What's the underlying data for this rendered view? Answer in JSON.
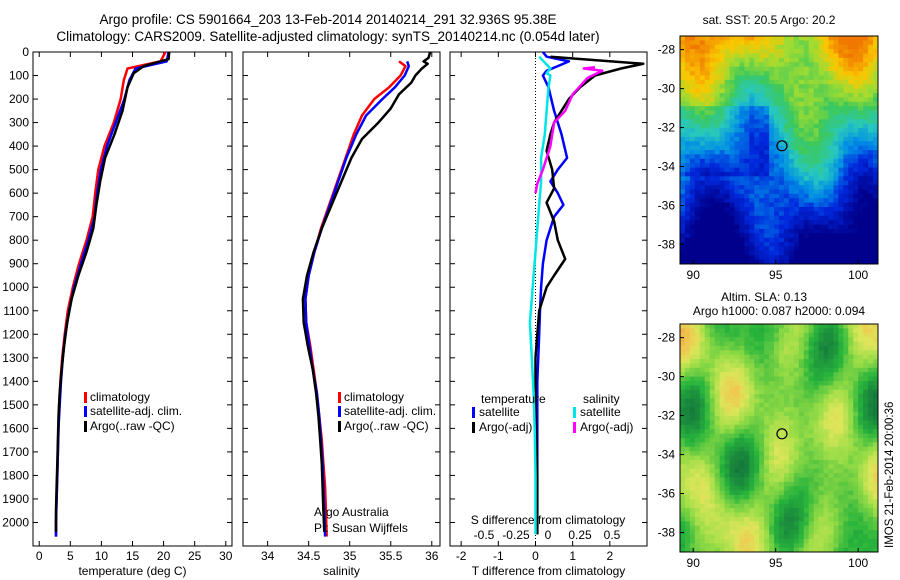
{
  "header": {
    "line1": "Argo profile: CS 5901664_203 13-Feb-2014 20140214_291 32.936S 95.38E",
    "line2": "Climatology: CARS2009. Satellite-adjusted climatology: synTS_20140214.nc (0.054d later)"
  },
  "colors": {
    "climatology": "#ff0000",
    "satellite": "#0000ff",
    "argo": "#000000",
    "sal_satellite": "#00e5e5",
    "sal_argo": "#ff00ff"
  },
  "chart_data": [
    {
      "id": "temperature",
      "type": "line",
      "xlabel": "temperature (deg C)",
      "ylabel": "",
      "xlim": [
        -1,
        31
      ],
      "ylim": [
        2100,
        0
      ],
      "xticks": [
        0,
        5,
        10,
        15,
        20,
        25,
        30
      ],
      "yticks": [
        0,
        100,
        200,
        300,
        400,
        500,
        600,
        700,
        800,
        900,
        1000,
        1100,
        1200,
        1300,
        1400,
        1500,
        1600,
        1700,
        1800,
        1900,
        2000
      ],
      "legend": [
        "climatology",
        "satellite-adj. clim.",
        "Argo(..raw -QC)"
      ],
      "series": [
        {
          "name": "climatology",
          "color": "#ff0000",
          "points": [
            [
              20.3,
              0
            ],
            [
              19.5,
              40
            ],
            [
              14.2,
              70
            ],
            [
              13.6,
              120
            ],
            [
              13.1,
              200
            ],
            [
              12.0,
              300
            ],
            [
              10.5,
              400
            ],
            [
              9.5,
              500
            ],
            [
              9.0,
              600
            ],
            [
              8.6,
              700
            ],
            [
              7.6,
              800
            ],
            [
              6.4,
              900
            ],
            [
              5.4,
              1000
            ],
            [
              4.6,
              1100
            ],
            [
              4.1,
              1200
            ],
            [
              3.7,
              1300
            ],
            [
              3.4,
              1400
            ],
            [
              3.2,
              1500
            ],
            [
              3.1,
              1600
            ],
            [
              3.0,
              1700
            ],
            [
              2.9,
              1800
            ],
            [
              2.8,
              1900
            ],
            [
              2.7,
              2000
            ],
            [
              2.7,
              2060
            ]
          ]
        },
        {
          "name": "satellite-adj. clim.",
          "color": "#0000ff",
          "points": [
            [
              20.8,
              0
            ],
            [
              20.5,
              40
            ],
            [
              15.5,
              70
            ],
            [
              14.5,
              120
            ],
            [
              13.7,
              200
            ],
            [
              12.3,
              300
            ],
            [
              10.9,
              400
            ],
            [
              9.9,
              500
            ],
            [
              9.3,
              600
            ],
            [
              8.9,
              700
            ],
            [
              7.9,
              800
            ],
            [
              6.7,
              900
            ],
            [
              5.6,
              1000
            ],
            [
              4.8,
              1100
            ],
            [
              4.2,
              1200
            ],
            [
              3.8,
              1300
            ],
            [
              3.5,
              1400
            ],
            [
              3.3,
              1500
            ],
            [
              3.1,
              1600
            ],
            [
              3.0,
              1700
            ],
            [
              2.9,
              1800
            ],
            [
              2.8,
              1900
            ],
            [
              2.7,
              2000
            ],
            [
              2.7,
              2060
            ]
          ]
        },
        {
          "name": "Argo(..raw -QC)",
          "color": "#000000",
          "points": [
            [
              20.9,
              0
            ],
            [
              20.8,
              30
            ],
            [
              16.8,
              60
            ],
            [
              15.2,
              90
            ],
            [
              14.2,
              150
            ],
            [
              13.4,
              250
            ],
            [
              12.1,
              350
            ],
            [
              10.6,
              450
            ],
            [
              9.8,
              550
            ],
            [
              9.2,
              650
            ],
            [
              8.7,
              750
            ],
            [
              7.6,
              850
            ],
            [
              6.3,
              950
            ],
            [
              5.2,
              1050
            ],
            [
              4.5,
              1150
            ],
            [
              4.0,
              1250
            ],
            [
              3.6,
              1350
            ],
            [
              3.3,
              1450
            ],
            [
              3.1,
              1550
            ],
            [
              3.0,
              1650
            ],
            [
              2.9,
              1750
            ],
            [
              2.8,
              1850
            ],
            [
              2.7,
              1950
            ],
            [
              2.7,
              2040
            ]
          ]
        }
      ]
    },
    {
      "id": "salinity",
      "type": "line",
      "xlabel": "salinity",
      "ylabel": "",
      "xlim": [
        33.7,
        36.1
      ],
      "ylim": [
        2100,
        0
      ],
      "xticks": [
        34,
        34.5,
        35,
        35.5,
        36
      ],
      "legend": [
        "climatology",
        "satellite-adj. clim.",
        "Argo(..raw -QC)"
      ],
      "annotation": [
        "Argo Australia",
        "PI: Susan Wijffels"
      ],
      "series": [
        {
          "name": "climatology",
          "color": "#ff0000",
          "points": [
            [
              35.6,
              40
            ],
            [
              35.68,
              60
            ],
            [
              35.62,
              100
            ],
            [
              35.48,
              150
            ],
            [
              35.3,
              200
            ],
            [
              35.15,
              270
            ],
            [
              35.05,
              350
            ],
            [
              34.95,
              450
            ],
            [
              34.85,
              550
            ],
            [
              34.75,
              650
            ],
            [
              34.65,
              750
            ],
            [
              34.57,
              850
            ],
            [
              34.5,
              950
            ],
            [
              34.46,
              1050
            ],
            [
              34.47,
              1150
            ],
            [
              34.52,
              1250
            ],
            [
              34.56,
              1350
            ],
            [
              34.6,
              1450
            ],
            [
              34.63,
              1550
            ],
            [
              34.66,
              1650
            ],
            [
              34.68,
              1750
            ],
            [
              34.7,
              1850
            ],
            [
              34.71,
              1950
            ],
            [
              34.72,
              2060
            ]
          ]
        },
        {
          "name": "satellite-adj. clim.",
          "color": "#0000ff",
          "points": [
            [
              35.7,
              40
            ],
            [
              35.72,
              60
            ],
            [
              35.67,
              100
            ],
            [
              35.55,
              150
            ],
            [
              35.4,
              200
            ],
            [
              35.2,
              270
            ],
            [
              35.08,
              350
            ],
            [
              34.96,
              450
            ],
            [
              34.86,
              550
            ],
            [
              34.76,
              650
            ],
            [
              34.66,
              750
            ],
            [
              34.57,
              850
            ],
            [
              34.5,
              950
            ],
            [
              34.46,
              1050
            ],
            [
              34.47,
              1150
            ],
            [
              34.51,
              1250
            ],
            [
              34.55,
              1350
            ],
            [
              34.6,
              1450
            ],
            [
              34.63,
              1550
            ],
            [
              34.65,
              1650
            ],
            [
              34.67,
              1750
            ],
            [
              34.68,
              1850
            ],
            [
              34.69,
              1950
            ],
            [
              34.7,
              2060
            ]
          ]
        },
        {
          "name": "Argo(..raw -QC)",
          "color": "#000000",
          "points": [
            [
              35.98,
              0
            ],
            [
              35.96,
              25
            ],
            [
              35.9,
              40
            ],
            [
              35.95,
              50
            ],
            [
              35.88,
              70
            ],
            [
              35.8,
              100
            ],
            [
              35.75,
              130
            ],
            [
              35.6,
              180
            ],
            [
              35.5,
              240
            ],
            [
              35.35,
              300
            ],
            [
              35.15,
              370
            ],
            [
              35.02,
              450
            ],
            [
              34.9,
              550
            ],
            [
              34.78,
              650
            ],
            [
              34.66,
              750
            ],
            [
              34.56,
              850
            ],
            [
              34.48,
              950
            ],
            [
              34.43,
              1050
            ],
            [
              34.44,
              1150
            ],
            [
              34.49,
              1250
            ],
            [
              34.55,
              1350
            ],
            [
              34.59,
              1450
            ],
            [
              34.62,
              1550
            ],
            [
              34.64,
              1650
            ],
            [
              34.66,
              1750
            ],
            [
              34.67,
              1850
            ],
            [
              34.68,
              1950
            ],
            [
              34.69,
              2040
            ]
          ]
        }
      ]
    },
    {
      "id": "difference",
      "type": "line",
      "xlabel": "T difference from climatology",
      "xlabel2": "S difference from climatology",
      "xlim": [
        -2.3,
        3.0
      ],
      "ylim": [
        2100,
        0
      ],
      "xticks": [
        -2,
        -1,
        0,
        1,
        2
      ],
      "s_ticks": [
        "-0.5",
        "-0.25",
        "0",
        "0.25",
        "0.5"
      ],
      "legend_headers": [
        "temperature",
        "salinity"
      ],
      "legend": [
        "satellite",
        "Argo(-adj)",
        "satellite",
        "Argo(-adj)"
      ],
      "series": [
        {
          "name": "satellite",
          "group": "temperature",
          "color": "#0000ff",
          "points": [
            [
              0.2,
              0
            ],
            [
              0.3,
              20
            ],
            [
              0.9,
              40
            ],
            [
              0.6,
              60
            ],
            [
              0.3,
              80
            ],
            [
              0.2,
              100
            ],
            [
              0.35,
              150
            ],
            [
              0.5,
              250
            ],
            [
              0.7,
              350
            ],
            [
              0.85,
              450
            ],
            [
              0.6,
              500
            ],
            [
              0.4,
              550
            ],
            [
              0.6,
              600
            ],
            [
              0.75,
              650
            ],
            [
              0.5,
              700
            ],
            [
              0.3,
              800
            ],
            [
              0.2,
              900
            ],
            [
              0.15,
              1000
            ],
            [
              0.12,
              1100
            ],
            [
              0.1,
              1200
            ],
            [
              0.05,
              1400
            ],
            [
              0.05,
              1600
            ],
            [
              0.05,
              1800
            ],
            [
              0.05,
              2050
            ]
          ]
        },
        {
          "name": "Argo(-adj)",
          "group": "temperature",
          "color": "#000000",
          "points": [
            [
              0.4,
              20
            ],
            [
              2.9,
              50
            ],
            [
              2.3,
              70
            ],
            [
              1.6,
              100
            ],
            [
              1.2,
              150
            ],
            [
              0.9,
              200
            ],
            [
              0.5,
              300
            ],
            [
              0.4,
              350
            ],
            [
              0.3,
              420
            ],
            [
              0.45,
              500
            ],
            [
              0.5,
              580
            ],
            [
              0.3,
              640
            ],
            [
              0.5,
              720
            ],
            [
              0.6,
              800
            ],
            [
              0.8,
              880
            ],
            [
              0.5,
              950
            ],
            [
              0.3,
              1000
            ],
            [
              0.2,
              1050
            ],
            [
              0.1,
              1100
            ],
            [
              0.05,
              1200
            ],
            [
              0.0,
              1300
            ],
            [
              0.0,
              1500
            ],
            [
              0.05,
              1800
            ],
            [
              0.05,
              2050
            ]
          ]
        },
        {
          "name": "satellite",
          "group": "salinity",
          "color": "#00e5e5",
          "points": [
            [
              0.1,
              20
            ],
            [
              0.4,
              70
            ],
            [
              0.3,
              90
            ],
            [
              0.4,
              100
            ],
            [
              0.35,
              150
            ],
            [
              0.3,
              250
            ],
            [
              0.25,
              350
            ],
            [
              0.15,
              450
            ],
            [
              0.15,
              550
            ],
            [
              0.1,
              650
            ],
            [
              0.05,
              750
            ],
            [
              0.0,
              850
            ],
            [
              -0.05,
              950
            ],
            [
              -0.1,
              1050
            ],
            [
              -0.15,
              1150
            ],
            [
              -0.1,
              1300
            ],
            [
              -0.05,
              1450
            ],
            [
              -0.02,
              1600
            ],
            [
              0.0,
              1800
            ],
            [
              0.0,
              2050
            ]
          ]
        },
        {
          "name": "Argo(-adj)",
          "group": "salinity",
          "color": "#ff00ff",
          "points": [
            [
              1.6,
              65
            ],
            [
              1.3,
              70
            ],
            [
              1.8,
              80
            ],
            [
              1.4,
              110
            ],
            [
              1.0,
              180
            ],
            [
              0.8,
              250
            ],
            [
              0.5,
              300
            ],
            [
              0.4,
              400
            ],
            [
              0.2,
              500
            ],
            [
              0.05,
              560
            ],
            [
              0.0,
              600
            ]
          ]
        }
      ]
    }
  ],
  "maps": [
    {
      "id": "sst-map",
      "title": "sat. SST: 20.5 Argo: 20.2",
      "xticks": [
        "90",
        "95",
        "100"
      ],
      "yticks": [
        "-28",
        "-30",
        "-32",
        "-34",
        "-36",
        "-38"
      ]
    },
    {
      "id": "sla-map",
      "title_line1": "Altim. SLA: 0.13",
      "title_line2": "Argo h1000: 0.087 h2000: 0.094",
      "xticks": [
        "90",
        "95",
        "100"
      ],
      "yticks": [
        "-28",
        "-30",
        "-32",
        "-34",
        "-36",
        "-38"
      ]
    }
  ],
  "footer": {
    "stamp": "IMOS 21-Feb-2014 20:00:36"
  }
}
